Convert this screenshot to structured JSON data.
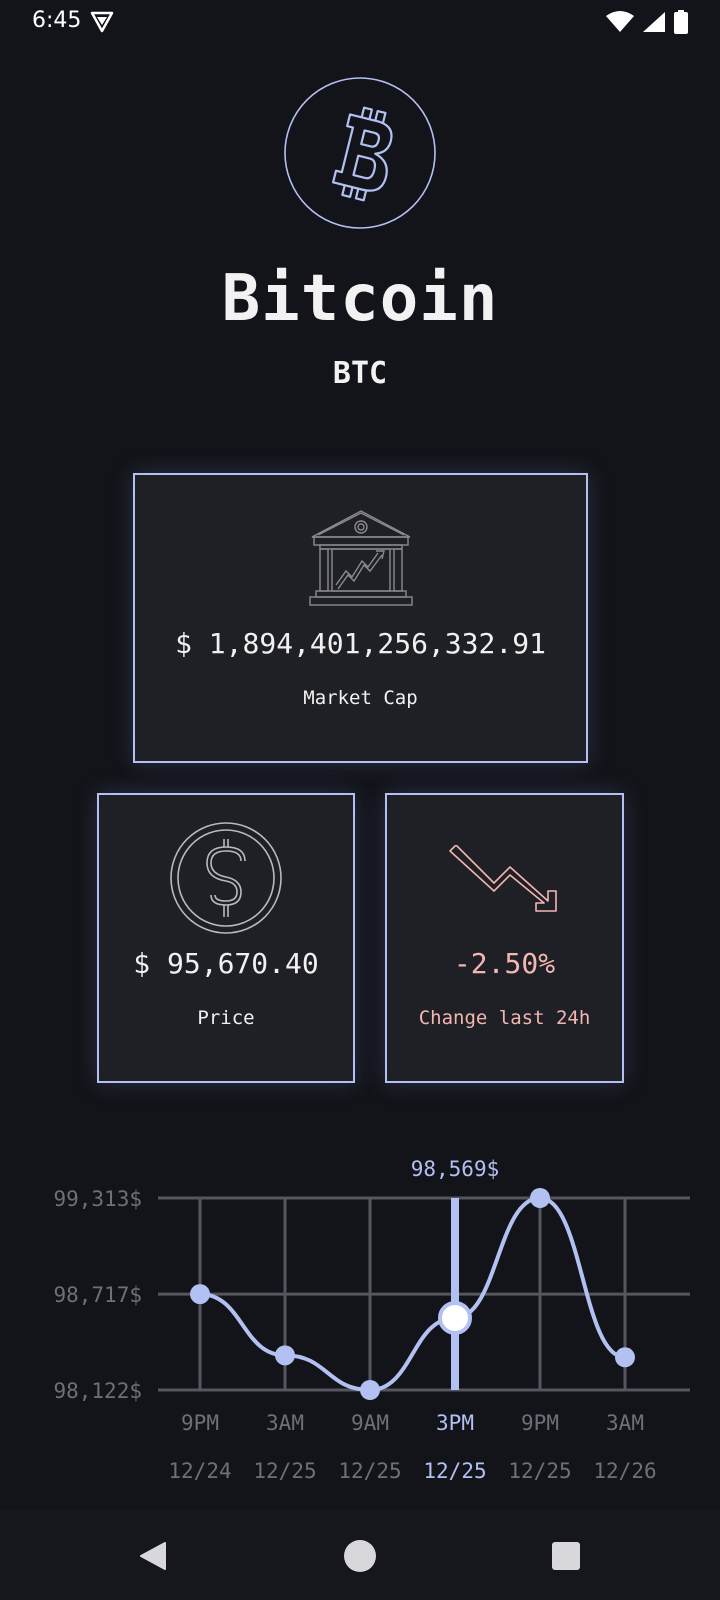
{
  "status": {
    "time": "6:45"
  },
  "coin": {
    "name": "Bitcoin",
    "symbol": "BTC"
  },
  "cards": {
    "market_cap": {
      "value": "$ 1,894,401,256,332.91",
      "label": "Market Cap"
    },
    "price": {
      "value": "$ 95,670.40",
      "label": "Price"
    },
    "change": {
      "value": "-2.50%",
      "label": "Change last 24h"
    }
  },
  "colors": {
    "accent": "#b2c1f2",
    "negative": "#f3b6b3",
    "background": "#131419",
    "card": "#1f2026"
  },
  "icons": {
    "coin": "bitcoin-icon",
    "market_cap": "bank-growth-icon",
    "price": "dollar-coin-icon",
    "change": "trend-down-icon"
  },
  "chart_data": {
    "type": "line",
    "x_time": [
      "9PM",
      "3AM",
      "9AM",
      "3PM",
      "9PM",
      "3AM"
    ],
    "x_date": [
      "12/24",
      "12/25",
      "12/25",
      "12/25",
      "12/25",
      "12/26"
    ],
    "values": [
      98717,
      98337,
      98122,
      98569,
      99313,
      98325
    ],
    "y_ticks": [
      99313,
      98717,
      98122
    ],
    "y_tick_labels": [
      "99,313$",
      "98,717$",
      "98,122$"
    ],
    "ylim": [
      98122,
      99313
    ],
    "selected_index": 3,
    "selected_label": "98,569$",
    "grid": true,
    "smooth": true
  },
  "nav": {
    "back": "back-icon",
    "home": "home-icon",
    "recents": "recents-icon"
  }
}
